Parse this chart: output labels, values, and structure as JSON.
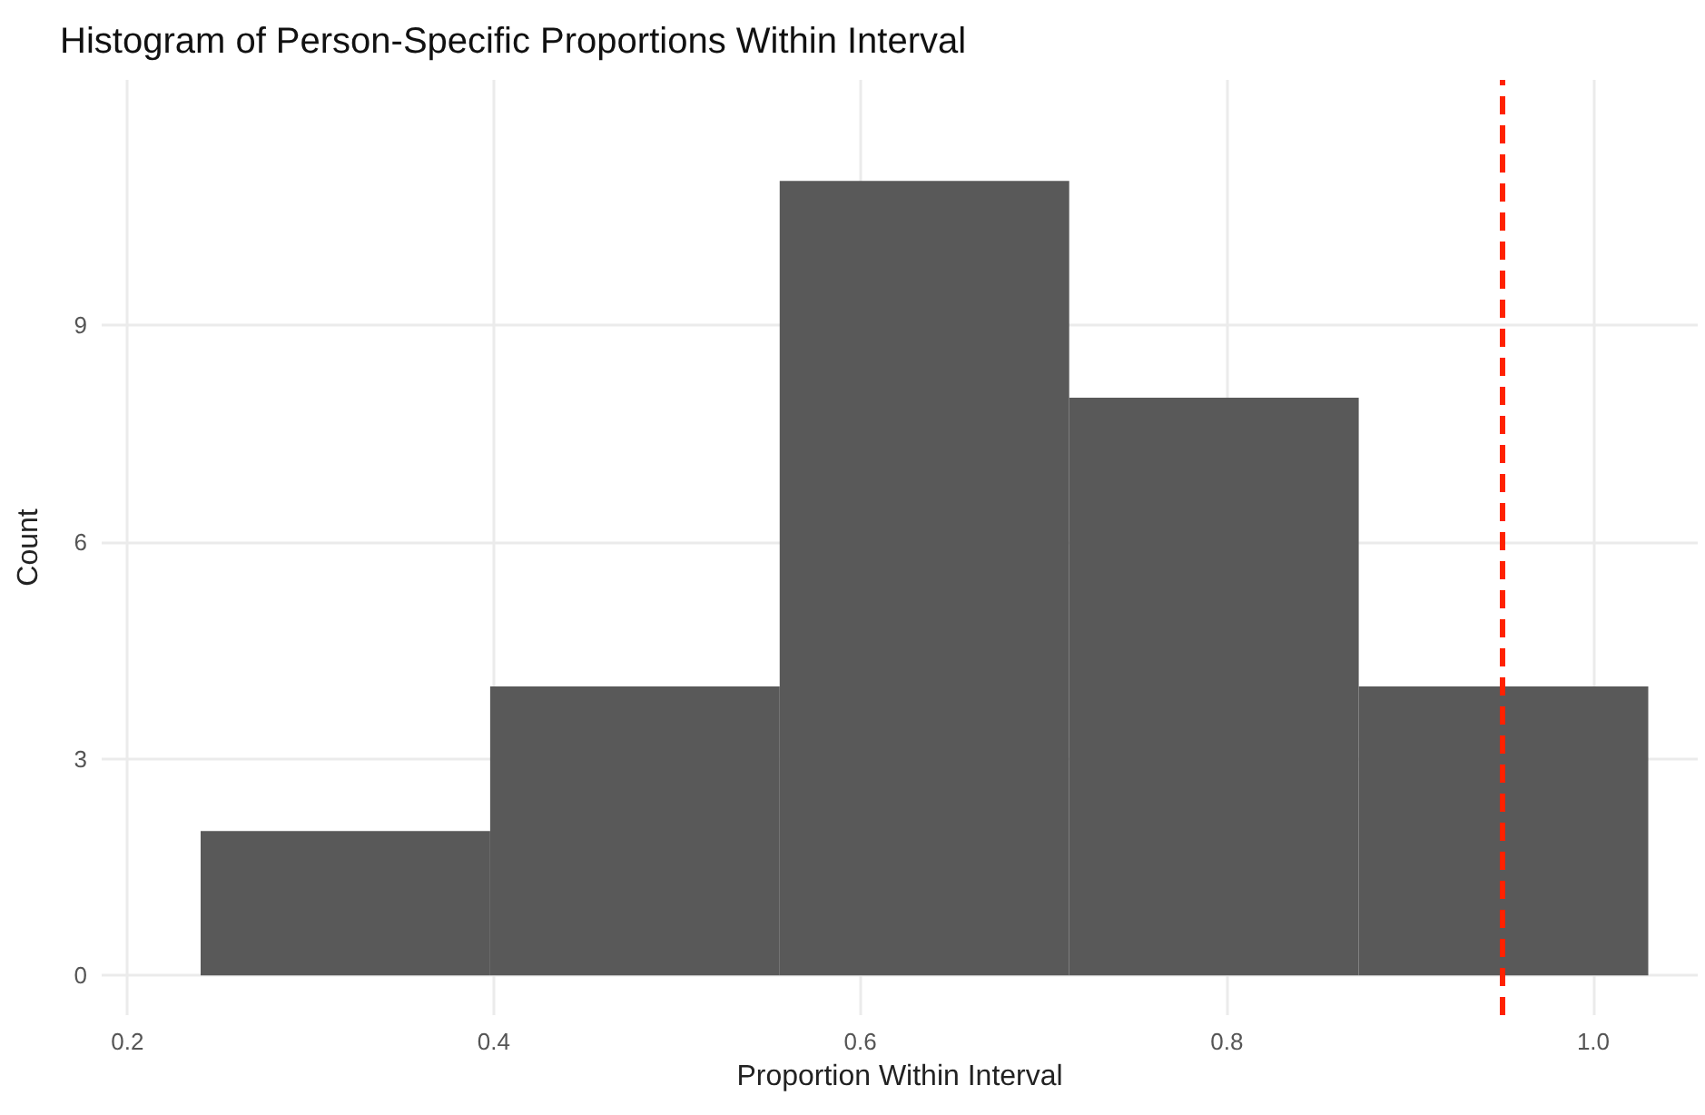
{
  "chart_data": {
    "type": "histogram",
    "title": "Histogram of Person-Specific Proportions Within Interval",
    "xlabel": "Proportion Within Interval",
    "ylabel": "Count",
    "bins": [
      0.24,
      0.398,
      0.556,
      0.714,
      0.872,
      1.03
    ],
    "values": [
      2,
      4,
      11,
      8,
      4
    ],
    "color": "#595959",
    "xlim": [
      0.186,
      1.057
    ],
    "ylim": [
      -0.55,
      12.4
    ],
    "xticks": [
      0.2,
      0.4,
      0.6,
      0.8,
      {
        "value": 1,
        "label": "1.0"
      }
    ],
    "yticks": [
      0,
      3,
      6,
      9
    ],
    "ref_lines": [
      {
        "axis": "x",
        "value": 0.95,
        "color": "#ff2200",
        "line_style": "dashed"
      }
    ],
    "grid": true
  }
}
